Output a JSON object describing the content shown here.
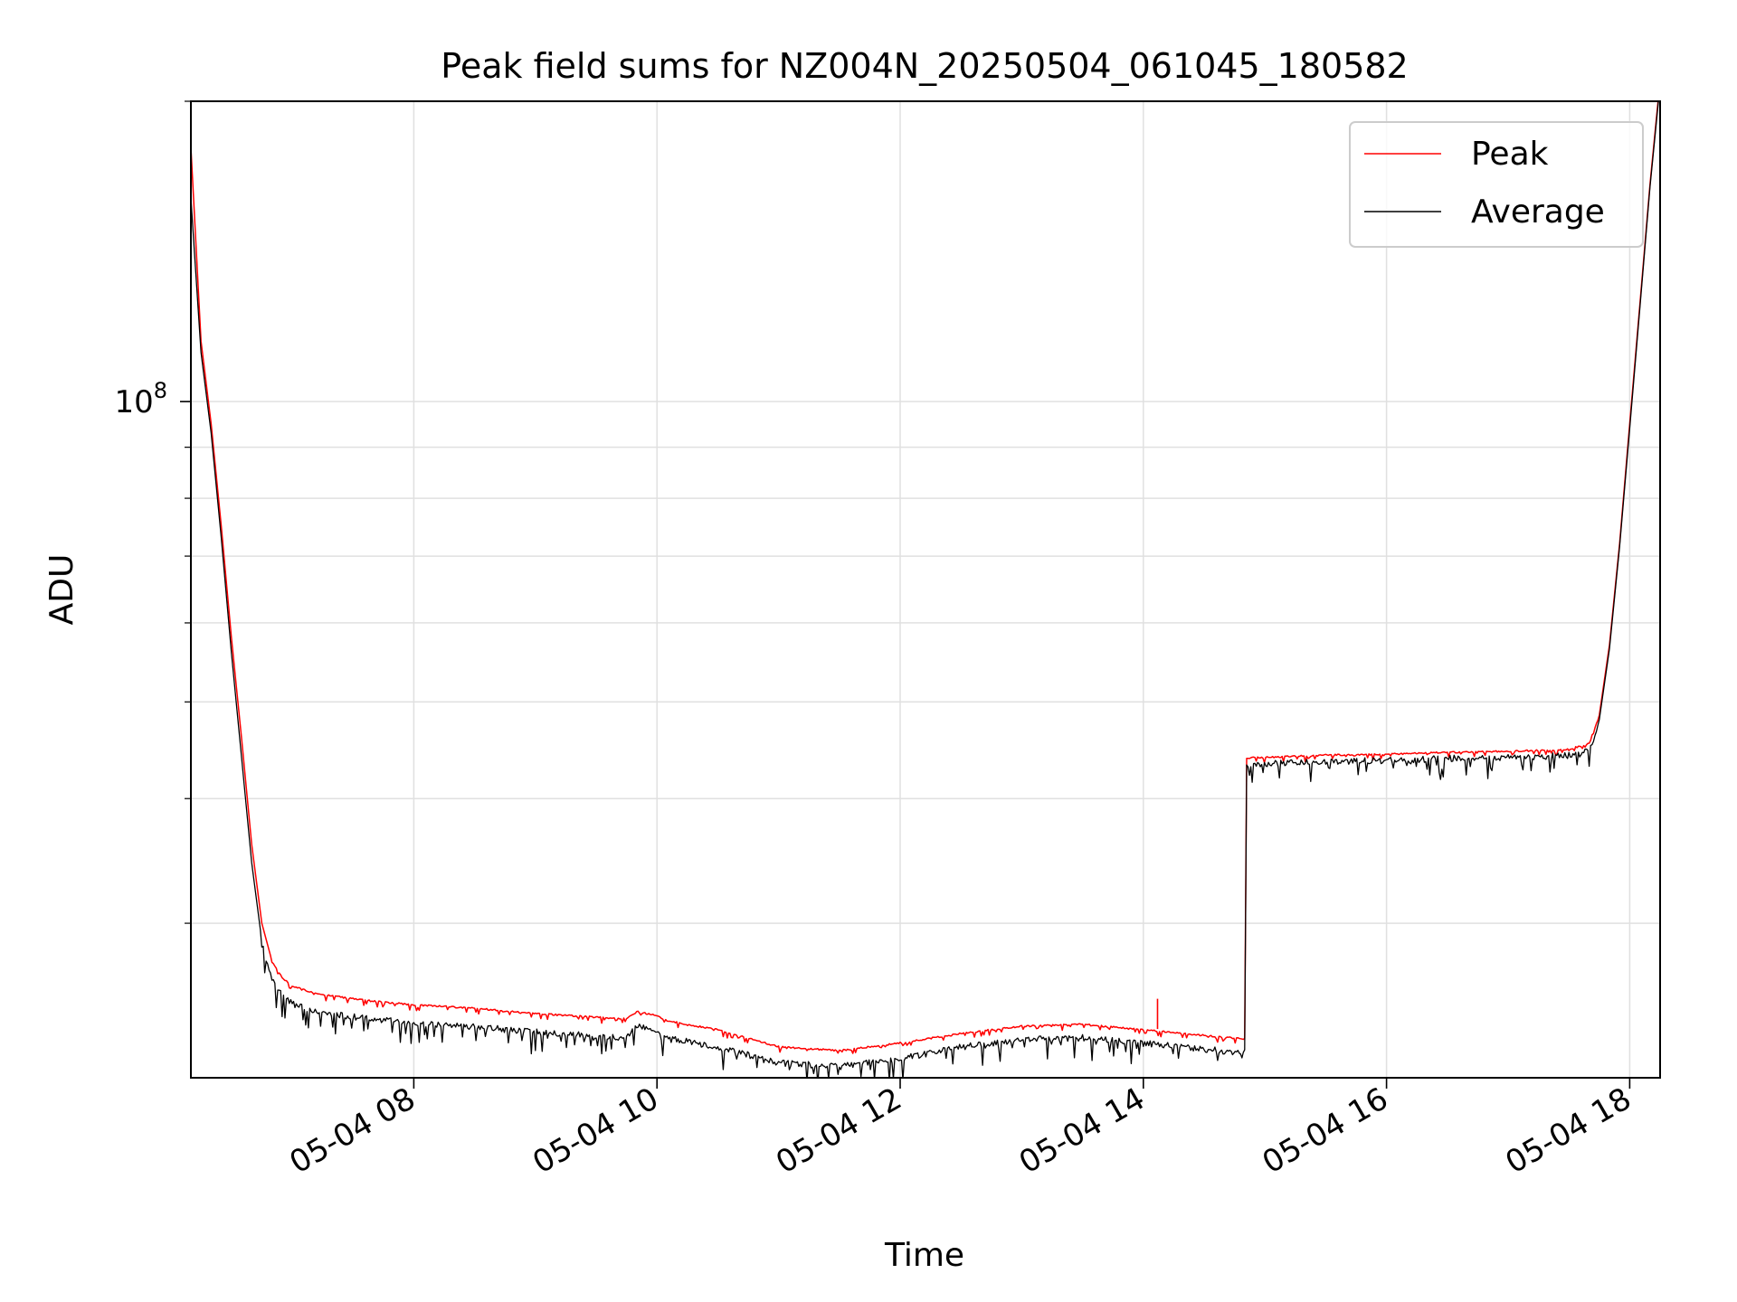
{
  "chart_data": {
    "type": "line",
    "title": "Peak field sums for NZ004N_20250504_061045_180582",
    "xlabel": "Time",
    "ylabel": "ADU",
    "xlim": [
      "05-04 06:10",
      "05-04 18:15"
    ],
    "ylim": [
      21000000,
      200000000
    ],
    "yscale": "log",
    "grid": true,
    "legend_position": "upper right",
    "x_tick_labels": [
      "05-04 08",
      "05-04 10",
      "05-04 12",
      "05-04 14",
      "05-04 16",
      "05-04 18"
    ],
    "x_ticks": [
      "05-04 08:00",
      "05-04 10:00",
      "05-04 12:00",
      "05-04 14:00",
      "05-04 16:00",
      "05-04 18:00"
    ],
    "y_major_ticks": [
      {
        "value": 100000000,
        "base": "10",
        "exp": "8"
      }
    ],
    "y_minor_ticks": [
      30000000,
      40000000,
      50000000,
      60000000,
      70000000,
      80000000,
      90000000,
      200000000
    ],
    "series": [
      {
        "name": "Peak",
        "color": "#ff0000",
        "x": [
          "05-04 06:10",
          "05-04 06:15",
          "05-04 06:20",
          "05-04 06:25",
          "05-04 06:30",
          "05-04 06:35",
          "05-04 06:40",
          "05-04 06:45",
          "05-04 06:50",
          "05-04 06:55",
          "05-04 07:00",
          "05-04 07:10",
          "05-04 07:20",
          "05-04 07:40",
          "05-04 08:00",
          "05-04 08:30",
          "05-04 09:00",
          "05-04 09:30",
          "05-04 09:45",
          "05-04 09:50",
          "05-04 10:00",
          "05-04 10:05",
          "05-04 10:30",
          "05-04 11:00",
          "05-04 11:30",
          "05-04 12:00",
          "05-04 12:30",
          "05-04 13:00",
          "05-04 13:30",
          "05-04 14:00",
          "05-04 14:30",
          "05-04 14:50",
          "05-04 14:51",
          "05-04 15:30",
          "05-04 16:00",
          "05-04 16:30",
          "05-04 17:00",
          "05-04 17:30",
          "05-04 17:40",
          "05-04 17:45",
          "05-04 17:50",
          "05-04 17:55",
          "05-04 18:00",
          "05-04 18:05",
          "05-04 18:10",
          "05-04 18:15"
        ],
        "values": [
          180000000,
          115000000,
          95000000,
          75000000,
          58000000,
          46000000,
          36000000,
          30000000,
          27500000,
          26500000,
          26000000,
          25600000,
          25400000,
          25100000,
          24900000,
          24700000,
          24400000,
          24200000,
          24100000,
          24500000,
          24300000,
          24000000,
          23500000,
          22600000,
          22400000,
          22800000,
          23300000,
          23700000,
          23800000,
          23500000,
          23200000,
          23000000,
          44000000,
          44300000,
          44400000,
          44600000,
          44700000,
          44900000,
          45500000,
          48500000,
          57000000,
          72000000,
          95000000,
          125000000,
          165000000,
          210000000
        ]
      },
      {
        "name": "Average",
        "color": "#000000",
        "x": [
          "05-04 06:10",
          "05-04 06:15",
          "05-04 06:20",
          "05-04 06:25",
          "05-04 06:30",
          "05-04 06:35",
          "05-04 06:40",
          "05-04 06:45",
          "05-04 06:50",
          "05-04 06:55",
          "05-04 07:00",
          "05-04 07:10",
          "05-04 07:20",
          "05-04 07:40",
          "05-04 08:00",
          "05-04 08:30",
          "05-04 09:00",
          "05-04 09:30",
          "05-04 09:45",
          "05-04 09:50",
          "05-04 10:00",
          "05-04 10:05",
          "05-04 10:30",
          "05-04 11:00",
          "05-04 11:30",
          "05-04 12:00",
          "05-04 12:30",
          "05-04 13:00",
          "05-04 13:30",
          "05-04 14:00",
          "05-04 14:30",
          "05-04 14:50",
          "05-04 14:51",
          "05-04 15:30",
          "05-04 16:00",
          "05-04 16:30",
          "05-04 17:00",
          "05-04 17:30",
          "05-04 17:40",
          "05-04 17:45",
          "05-04 17:50",
          "05-04 17:55",
          "05-04 18:00",
          "05-04 18:05",
          "05-04 18:10",
          "05-04 18:15"
        ],
        "values": [
          160000000,
          112000000,
          93000000,
          73000000,
          56000000,
          44000000,
          34500000,
          28800000,
          26500000,
          25600000,
          25100000,
          24700000,
          24500000,
          24200000,
          24000000,
          23800000,
          23500000,
          23300000,
          23200000,
          23800000,
          23600000,
          23200000,
          22700000,
          21900000,
          21700000,
          22100000,
          22700000,
          23100000,
          23200000,
          22900000,
          22600000,
          22400000,
          43600000,
          43900000,
          44000000,
          44200000,
          44300000,
          44500000,
          45100000,
          48000000,
          56500000,
          71500000,
          94000000,
          124000000,
          164000000,
          208000000
        ]
      }
    ],
    "annotations": [
      {
        "series": "Peak",
        "type": "spike",
        "x": "05-04 14:07",
        "value": 25200000
      }
    ]
  }
}
